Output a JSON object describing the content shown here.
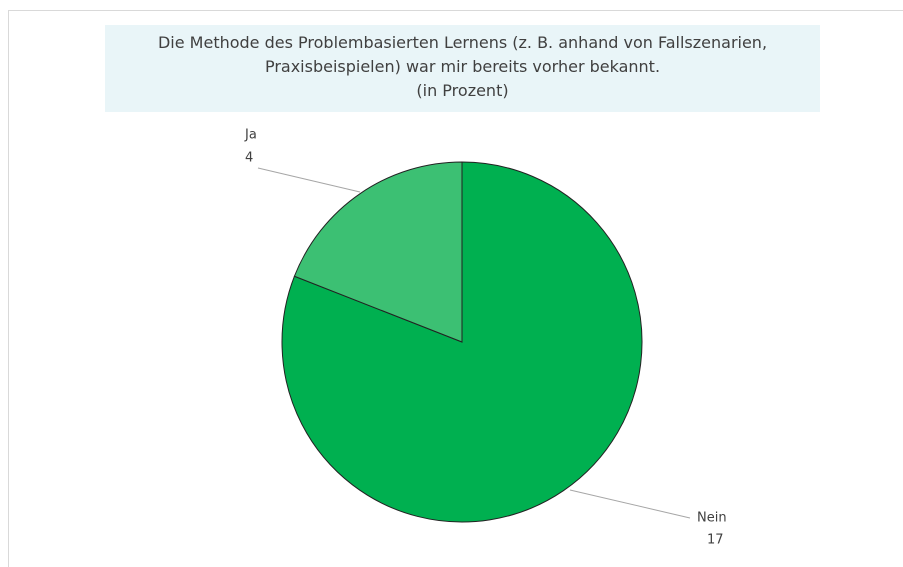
{
  "chart_data": {
    "type": "pie",
    "title": "Die Methode des Problembasierten Lernens (z. B. anhand von Fallszenarien, Praxisbeispielen) war mir bereits vorher bekannt.",
    "subtitle": "(in Prozent)",
    "categories": [
      "Nein",
      "Ja"
    ],
    "values": [
      17,
      4
    ],
    "colors": [
      "#00b050",
      "#3cc073"
    ]
  }
}
